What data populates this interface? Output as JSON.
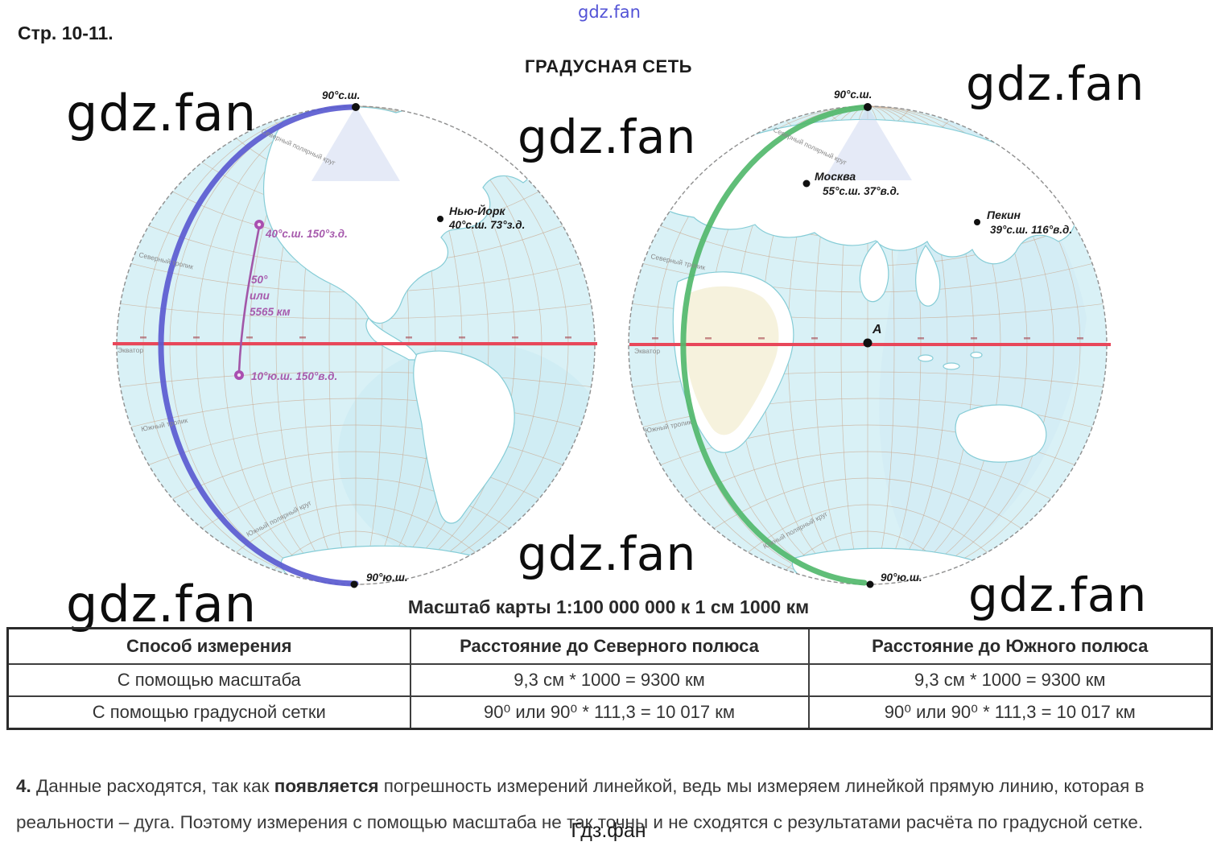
{
  "page": {
    "page_ref": "Стр. 10-11.",
    "title": "ГРАДУСНАЯ СЕТЬ",
    "scale_caption": "Масштаб карты 1:100 000 000 к 1 см 1000 км",
    "watermark": "gdz.fan",
    "watermark_small": "gdz.fan",
    "footer_site": "Гдз.фан"
  },
  "maps": {
    "poles": {
      "north": "90°с.ш.",
      "south": "90°ю.ш."
    },
    "latitude_labels": {
      "equator": "Экватор",
      "arctic": "Северный полярный круг",
      "tropic_n": "Северный тропик",
      "tropic_s": "Южный тропик",
      "antarctic": "Южный полярный круг"
    },
    "left": {
      "city": {
        "name": "Нью-Йорк",
        "coords": "40°с.ш. 73°з.д."
      },
      "measure": {
        "point_top": "40°с.ш. 150°з.д.",
        "deg": "50°",
        "or": "или",
        "km": "5565 км",
        "point_bottom": "10°ю.ш. 150°в.д."
      }
    },
    "right": {
      "cities": [
        {
          "name": "Москва",
          "coords": "55°с.ш. 37°в.д."
        },
        {
          "name": "Пекин",
          "coords": "39°с.ш. 116°в.д."
        }
      ],
      "point_a": "А"
    },
    "colors": {
      "equator": "#e8475a",
      "west_meridian": "#5b5bd0",
      "east_meridian": "#53b96d",
      "measure_line": "#a257a8",
      "ocean": "#d9f1f6",
      "land": "#ffffff"
    }
  },
  "table": {
    "headers": [
      "Способ измерения",
      "Расстояние до Северного полюса",
      "Расстояние до Южного полюса"
    ],
    "rows": [
      [
        "С помощью масштаба",
        "9,3 см * 1000 = 9300 км",
        "9,3 см * 1000 = 9300 км"
      ],
      [
        "С помощью градусной сетки",
        "90⁰ или 90⁰ * 111,3 = 10 017 км",
        "90⁰ или 90⁰ * 111,3 = 10 017 км"
      ]
    ]
  },
  "answer": {
    "number": "4.",
    "pre": " Данные расходятся, так как ",
    "bold": "появляется",
    "post": " погрешность измерений линейкой, ведь мы измеряем линейкой прямую линию, которая в реальности – дуга. Поэтому измерения с помощью масштаба не так точны и не сходятся с результатами расчёта по градусной сетке."
  }
}
